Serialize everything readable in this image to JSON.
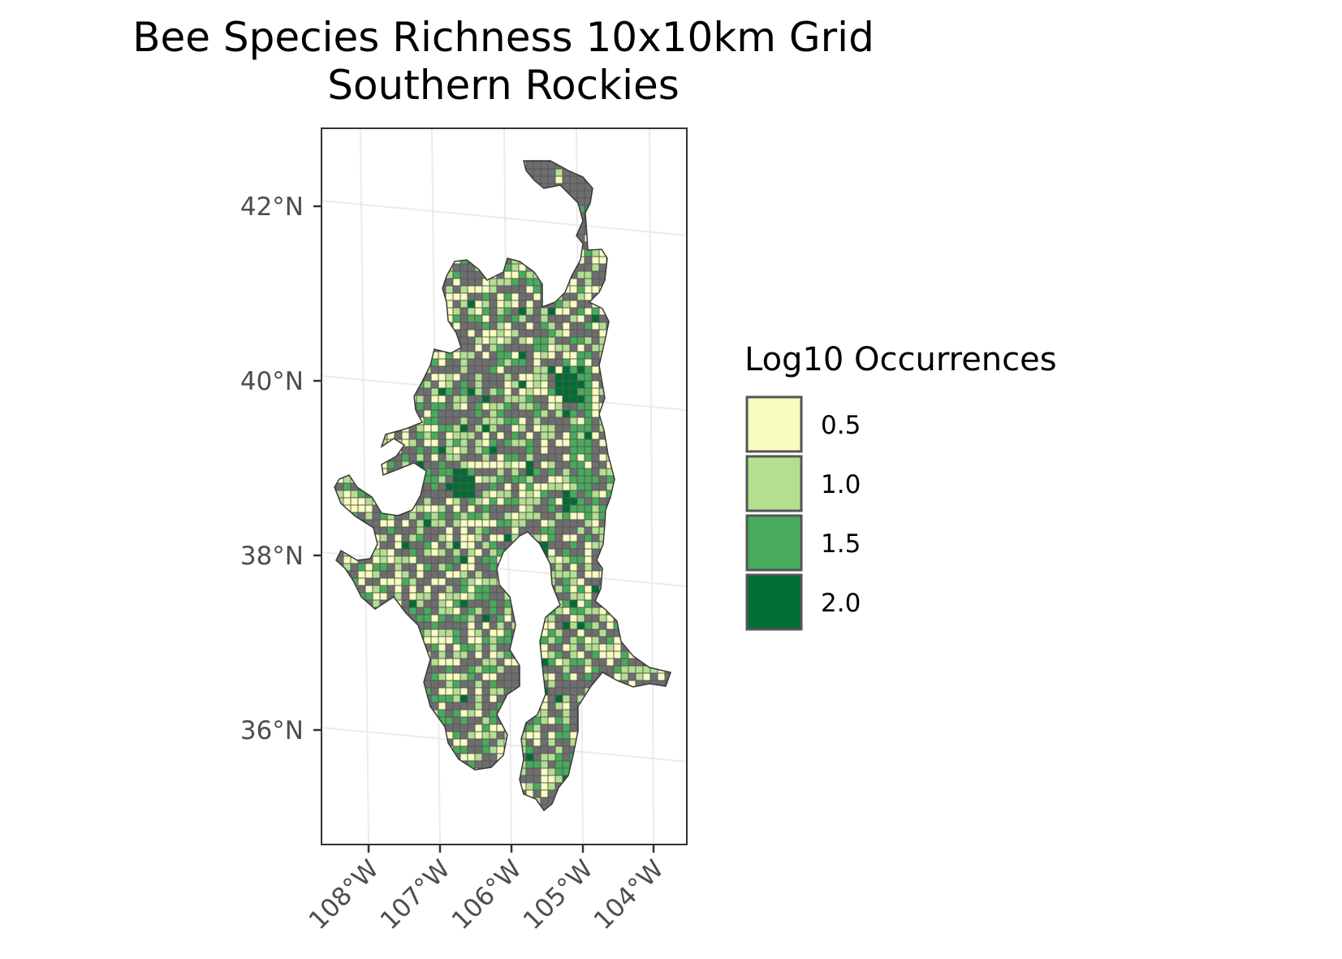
{
  "title": {
    "line1": "Bee Species Richness 10x10km Grid",
    "line2": "Southern Rockies"
  },
  "colors": {
    "no_data": "#6e6e6e",
    "grid_line": "#ebebeb",
    "panel_border": "#333333",
    "cell_border": "#555555"
  },
  "axes": {
    "lat_ticks": [
      "42°N",
      "40°N",
      "38°N",
      "36°N"
    ],
    "lon_ticks": [
      "108°W",
      "107°W",
      "106°W",
      "105°W",
      "104°W"
    ]
  },
  "legend": {
    "title": "Log10 Occurrences",
    "items": [
      {
        "label": "0.5",
        "color": "#f7fcc0"
      },
      {
        "label": "1.0",
        "color": "#b3df91"
      },
      {
        "label": "1.5",
        "color": "#48ab5c"
      },
      {
        "label": "2.0",
        "color": "#006d35"
      }
    ]
  }
}
